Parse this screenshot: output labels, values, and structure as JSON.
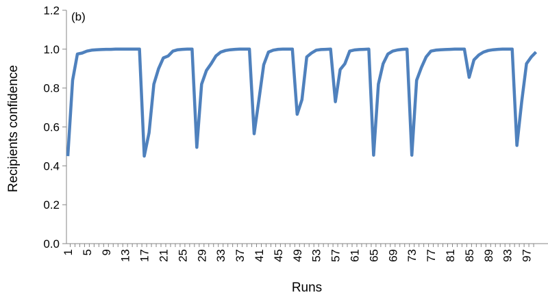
{
  "chart_data": {
    "type": "line",
    "panel_label": "(b)",
    "xlabel": "Runs",
    "ylabel": "Recipients confidence",
    "ylim": [
      0,
      1.2
    ],
    "yticks": [
      "0.0",
      "0.2",
      "0.4",
      "0.6",
      "0.8",
      "1.0",
      "1.2"
    ],
    "xlim": [
      1,
      99
    ],
    "xticks": [
      "1",
      "5",
      "9",
      "13",
      "17",
      "21",
      "25",
      "29",
      "33",
      "37",
      "41",
      "45",
      "49",
      "53",
      "57",
      "61",
      "65",
      "69",
      "73",
      "77",
      "81",
      "85",
      "89",
      "93",
      "97"
    ],
    "grid": false,
    "legend": "none",
    "line_color": "#4F81BD",
    "series": [
      {
        "x": [
          1,
          2,
          3,
          4,
          5,
          6,
          7,
          8,
          9,
          10,
          11,
          12,
          13,
          14,
          15,
          16,
          17,
          18,
          19,
          20,
          21,
          22,
          23,
          24,
          25,
          26,
          27,
          28,
          29,
          30,
          31,
          32,
          33,
          34,
          35,
          36,
          37,
          38,
          39,
          40,
          41,
          42,
          43,
          44,
          45,
          46,
          47,
          48,
          49,
          50,
          51,
          52,
          53,
          54,
          55,
          56,
          57,
          58,
          59,
          60,
          61,
          62,
          63,
          64,
          65,
          66,
          67,
          68,
          69,
          70,
          71,
          72,
          73,
          74,
          75,
          76,
          77,
          78,
          79,
          80,
          81,
          82,
          83,
          84,
          85,
          86,
          87,
          88,
          89,
          90,
          91,
          92,
          93,
          94,
          95,
          96,
          97,
          98,
          99
        ],
        "values": [
          0.45,
          0.84,
          0.975,
          0.98,
          0.99,
          0.995,
          0.997,
          0.998,
          0.999,
          0.999,
          1.0,
          1.0,
          1.0,
          1.0,
          1.0,
          1.0,
          0.45,
          0.57,
          0.82,
          0.9,
          0.955,
          0.965,
          0.99,
          0.997,
          0.999,
          1.0,
          1.0,
          0.495,
          0.82,
          0.89,
          0.925,
          0.965,
          0.985,
          0.993,
          0.997,
          0.999,
          1.0,
          1.0,
          1.0,
          0.565,
          0.74,
          0.92,
          0.985,
          0.995,
          0.999,
          1.0,
          1.0,
          1.0,
          0.665,
          0.74,
          0.96,
          0.98,
          0.995,
          0.998,
          0.999,
          1.0,
          0.73,
          0.895,
          0.925,
          0.99,
          0.996,
          0.998,
          0.999,
          1.0,
          0.455,
          0.82,
          0.925,
          0.975,
          0.99,
          0.996,
          0.999,
          1.0,
          0.455,
          0.84,
          0.905,
          0.96,
          0.99,
          0.995,
          0.997,
          0.998,
          0.999,
          1.0,
          1.0,
          1.0,
          0.855,
          0.945,
          0.97,
          0.985,
          0.993,
          0.997,
          0.999,
          1.0,
          1.0,
          1.0,
          0.505,
          0.73,
          0.925,
          0.96,
          0.985
        ]
      }
    ]
  }
}
